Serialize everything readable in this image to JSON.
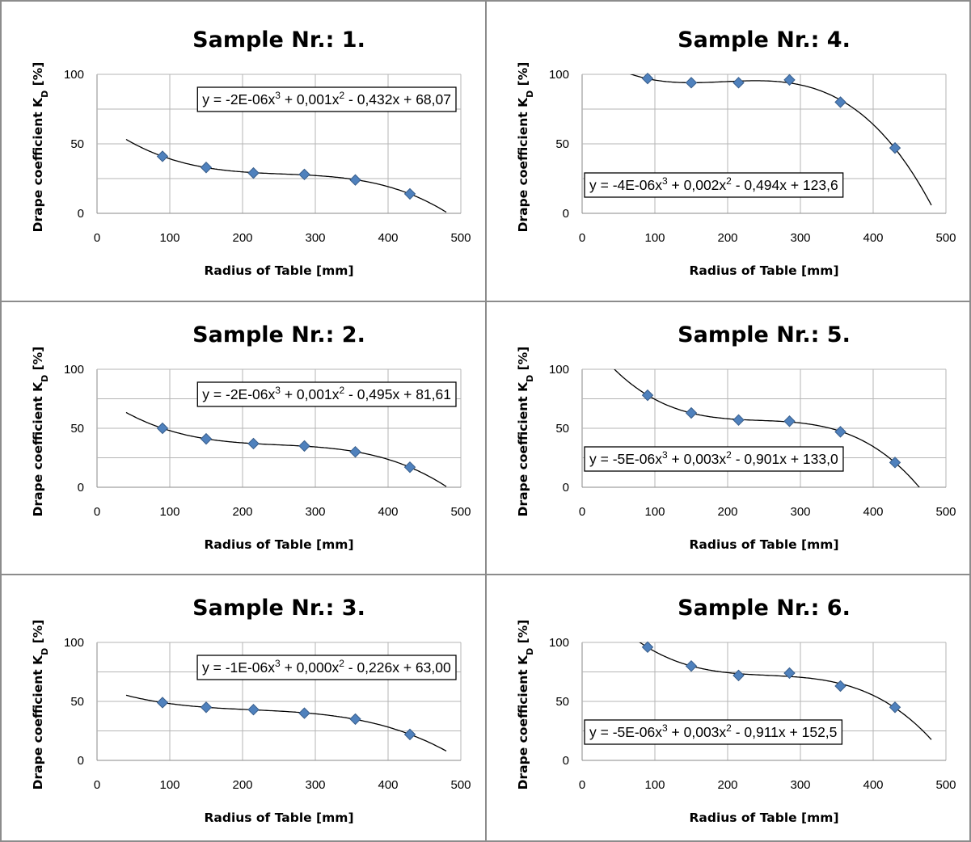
{
  "chart_data": [
    {
      "type": "scatter",
      "title": "Sample Nr.: 1.",
      "xlabel": "Radius of Table [mm]",
      "ylabel": "Drape coefficient K_D [%]",
      "xlim": [
        0,
        500
      ],
      "ylim": [
        0,
        100
      ],
      "xticks": [
        "0",
        "100",
        "200",
        "300",
        "400",
        "500"
      ],
      "yticks": [
        "0",
        "50",
        "100"
      ],
      "grid": true,
      "equation": "y = -2E-06x³ + 0,001x² - 0,432x + 68,07",
      "equation_position": "top",
      "trend_range": [
        40,
        480
      ],
      "series": [
        {
          "x": [
            90,
            150,
            215,
            285,
            355,
            430
          ],
          "y": [
            41,
            33,
            29,
            28,
            24,
            14
          ]
        }
      ]
    },
    {
      "type": "scatter",
      "title": "Sample Nr.: 4.",
      "xlabel": "Radius of Table [mm]",
      "ylabel": "Drape coefficient K_D [%]",
      "xlim": [
        0,
        500
      ],
      "ylim": [
        0,
        100
      ],
      "xticks": [
        "0",
        "100",
        "200",
        "300",
        "400",
        "500"
      ],
      "yticks": [
        "0",
        "50",
        "100"
      ],
      "grid": true,
      "equation": "y = -4E-06x³ + 0,002x² - 0,494x + 123,6",
      "equation_position": "bottom",
      "trend_range": [
        40,
        480
      ],
      "series": [
        {
          "x": [
            90,
            150,
            215,
            285,
            355,
            430
          ],
          "y": [
            97,
            94,
            94,
            96,
            80,
            47
          ]
        }
      ]
    },
    {
      "type": "scatter",
      "title": "Sample Nr.: 2.",
      "xlabel": "Radius of Table [mm]",
      "ylabel": "Drape coefficient K_D [%]",
      "xlim": [
        0,
        500
      ],
      "ylim": [
        0,
        100
      ],
      "xticks": [
        "0",
        "100",
        "200",
        "300",
        "400",
        "500"
      ],
      "yticks": [
        "0",
        "50",
        "100"
      ],
      "grid": true,
      "equation": "y = -2E-06x³ + 0,001x² - 0,495x + 81,61",
      "equation_position": "top",
      "trend_range": [
        40,
        480
      ],
      "series": [
        {
          "x": [
            90,
            150,
            215,
            285,
            355,
            430
          ],
          "y": [
            50,
            41,
            37,
            35,
            30,
            17
          ]
        }
      ]
    },
    {
      "type": "scatter",
      "title": "Sample Nr.: 5.",
      "xlabel": "Radius of Table [mm]",
      "ylabel": "Drape coefficient K_D [%]",
      "xlim": [
        0,
        500
      ],
      "ylim": [
        0,
        100
      ],
      "xticks": [
        "0",
        "100",
        "200",
        "300",
        "400",
        "500"
      ],
      "yticks": [
        "0",
        "50",
        "100"
      ],
      "grid": true,
      "equation": "y = -5E-06x³ + 0,003x² - 0,901x + 133,0",
      "equation_position": "bottom",
      "trend_range": [
        40,
        480
      ],
      "series": [
        {
          "x": [
            90,
            150,
            215,
            285,
            355,
            430
          ],
          "y": [
            78,
            63,
            57,
            56,
            47,
            21
          ]
        }
      ]
    },
    {
      "type": "scatter",
      "title": "Sample Nr.: 3.",
      "xlabel": "Radius of Table [mm]",
      "ylabel": "Drape coefficient K_D [%]",
      "xlim": [
        0,
        500
      ],
      "ylim": [
        0,
        100
      ],
      "xticks": [
        "0",
        "100",
        "200",
        "300",
        "400",
        "500"
      ],
      "yticks": [
        "0",
        "50",
        "100"
      ],
      "grid": true,
      "equation": "y = -1E-06x³ + 0,000x² - 0,226x + 63,00",
      "equation_position": "top",
      "trend_range": [
        40,
        480
      ],
      "series": [
        {
          "x": [
            90,
            150,
            215,
            285,
            355,
            430
          ],
          "y": [
            49,
            45,
            43,
            40,
            35,
            22
          ]
        }
      ]
    },
    {
      "type": "scatter",
      "title": "Sample Nr.: 6.",
      "xlabel": "Radius of Table [mm]",
      "ylabel": "Drape coefficient K_D [%]",
      "xlim": [
        0,
        500
      ],
      "ylim": [
        0,
        100
      ],
      "xticks": [
        "0",
        "100",
        "200",
        "300",
        "400",
        "500"
      ],
      "yticks": [
        "0",
        "50",
        "100"
      ],
      "grid": true,
      "equation": "y = -5E-06x³ + 0,003x² - 0,911x + 152,5",
      "equation_position": "bottom",
      "trend_range": [
        40,
        480
      ],
      "series": [
        {
          "x": [
            90,
            150,
            215,
            285,
            355,
            430
          ],
          "y": [
            96,
            80,
            72,
            74,
            63,
            45
          ]
        }
      ]
    }
  ],
  "colors": {
    "marker": "#4f81bd",
    "marker_edge": "#385d8a",
    "trendline": "#000000",
    "gridline": "#b5b5b5",
    "panel_border": "#8c8c8c"
  }
}
